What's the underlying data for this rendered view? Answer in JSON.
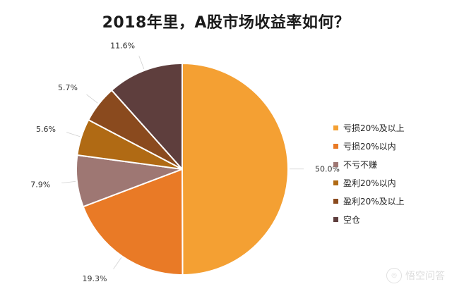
{
  "chart_data": {
    "type": "pie",
    "title": "2018年里，A股市场收益率如何？",
    "categories": [
      "亏损20%及以上",
      "亏损20%以内",
      "不亏不赚",
      "盈利20%以内",
      "盈利20%及以上",
      "空仓"
    ],
    "values": [
      50.0,
      19.3,
      7.9,
      5.6,
      5.7,
      11.6
    ],
    "data_labels": [
      "50.0%",
      "19.3%",
      "7.9%",
      "5.6%",
      "5.7%",
      "11.6%"
    ],
    "colors": [
      "#F4A033",
      "#E97A26",
      "#9E7773",
      "#B06A14",
      "#8A4A1E",
      "#5E3E3D"
    ],
    "start_angle_deg": 0,
    "direction": "clockwise",
    "legend_position": "right"
  },
  "watermark": {
    "text": "悟空问答",
    "logo": "wukong-logo-icon"
  }
}
